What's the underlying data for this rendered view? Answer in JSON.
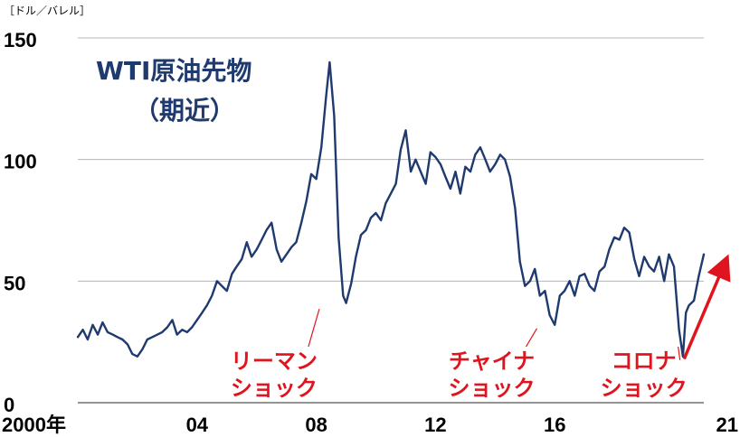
{
  "chart_data": {
    "type": "line",
    "unit_label": "［ドル／バレル］",
    "title_lines": [
      "WTI原油先物",
      "（期近）"
    ],
    "ylim": [
      0,
      150
    ],
    "yticks": [
      0,
      50,
      100,
      150
    ],
    "xlim": [
      2000.0,
      2021.0
    ],
    "xticks": [
      {
        "value": 2000,
        "label": "2000年"
      },
      {
        "value": 2004,
        "label": "04"
      },
      {
        "value": 2008,
        "label": "08"
      },
      {
        "value": 2012,
        "label": "12"
      },
      {
        "value": 2016,
        "label": "16"
      },
      {
        "value": 2021,
        "label": "21"
      }
    ],
    "grid": true,
    "series": [
      {
        "color": "#1f3a6e",
        "x": [
          2000.0,
          2000.17,
          2000.33,
          2000.5,
          2000.67,
          2000.83,
          2001.0,
          2001.17,
          2001.33,
          2001.5,
          2001.67,
          2001.83,
          2002.0,
          2002.17,
          2002.33,
          2002.5,
          2002.67,
          2002.83,
          2003.0,
          2003.17,
          2003.33,
          2003.5,
          2003.67,
          2003.83,
          2004.0,
          2004.17,
          2004.33,
          2004.5,
          2004.67,
          2004.83,
          2005.0,
          2005.17,
          2005.33,
          2005.5,
          2005.67,
          2005.83,
          2006.0,
          2006.17,
          2006.33,
          2006.5,
          2006.67,
          2006.83,
          2007.0,
          2007.17,
          2007.33,
          2007.5,
          2007.67,
          2007.83,
          2008.0,
          2008.17,
          2008.33,
          2008.45,
          2008.6,
          2008.75,
          2008.9,
          2009.0,
          2009.17,
          2009.33,
          2009.5,
          2009.67,
          2009.83,
          2010.0,
          2010.17,
          2010.33,
          2010.5,
          2010.67,
          2010.83,
          2011.0,
          2011.17,
          2011.33,
          2011.5,
          2011.67,
          2011.83,
          2012.0,
          2012.17,
          2012.33,
          2012.5,
          2012.67,
          2012.83,
          2013.0,
          2013.17,
          2013.33,
          2013.5,
          2013.67,
          2013.83,
          2014.0,
          2014.17,
          2014.33,
          2014.5,
          2014.67,
          2014.83,
          2015.0,
          2015.17,
          2015.33,
          2015.5,
          2015.67,
          2015.83,
          2016.0,
          2016.17,
          2016.33,
          2016.5,
          2016.67,
          2016.83,
          2017.0,
          2017.17,
          2017.33,
          2017.5,
          2017.67,
          2017.83,
          2018.0,
          2018.17,
          2018.33,
          2018.5,
          2018.67,
          2018.83,
          2019.0,
          2019.17,
          2019.33,
          2019.5,
          2019.67,
          2019.83,
          2020.0,
          2020.17,
          2020.3,
          2020.4,
          2020.5,
          2020.67,
          2020.83,
          2021.0
        ],
        "y": [
          27,
          30,
          26,
          32,
          28,
          33,
          29,
          28,
          27,
          26,
          24,
          20,
          19,
          22,
          26,
          27,
          28,
          29,
          31,
          34,
          28,
          30,
          29,
          31,
          34,
          37,
          40,
          44,
          50,
          48,
          46,
          53,
          56,
          59,
          66,
          60,
          63,
          67,
          71,
          74,
          63,
          58,
          61,
          64,
          66,
          74,
          83,
          94,
          92,
          105,
          126,
          140,
          118,
          68,
          44,
          41,
          49,
          60,
          69,
          71,
          76,
          78,
          75,
          82,
          86,
          90,
          104,
          112,
          95,
          100,
          95,
          90,
          103,
          101,
          98,
          93,
          88,
          95,
          86,
          97,
          95,
          102,
          105,
          100,
          95,
          98,
          102,
          100,
          93,
          80,
          58,
          48,
          50,
          55,
          44,
          46,
          36,
          32,
          44,
          46,
          50,
          44,
          52,
          53,
          48,
          46,
          54,
          56,
          63,
          68,
          67,
          72,
          70,
          59,
          52,
          60,
          56,
          54,
          60,
          50,
          61,
          56,
          30,
          19,
          37,
          40,
          42,
          52,
          61
        ]
      }
    ],
    "annotations": [
      {
        "lines": [
          "リーマン",
          "ショック"
        ],
        "color": "#e0141e",
        "x": 2008.1,
        "y": 40
      },
      {
        "lines": [
          "チャイナ",
          "ショック"
        ],
        "color": "#e0141e",
        "x": 2015.4,
        "y": 32
      },
      {
        "lines": [
          "コロナ",
          "ショック"
        ],
        "color": "#e0141e",
        "x": 2020.2,
        "y": 19
      }
    ],
    "trend_arrow": {
      "color": "#e0141e",
      "from": [
        2020.4,
        18
      ],
      "to": [
        2021.0,
        60
      ]
    }
  }
}
